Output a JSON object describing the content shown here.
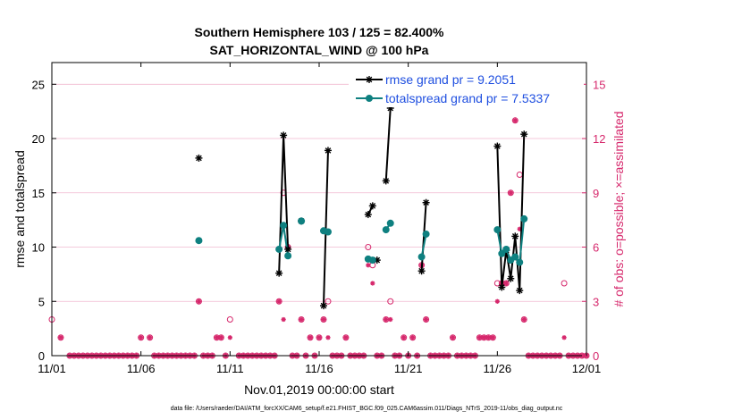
{
  "chart_data": {
    "type": "line",
    "title_line1": "Southern Hemisphere 103 / 125 = 82.400%",
    "title_line2": "SAT_HORIZONTAL_WIND @ 100 hPa",
    "ylabel": "rmse and totalspread",
    "y2label": "# of obs: o=possible; ×=assimilated",
    "xlabel": "Nov.01,2019 00:00:00 start",
    "footnote": "data file: /Users/raeder/DAI/ATM_forcXX/CAM6_setup/f.e21.FHIST_BGC.f09_025.CAM6assim.011/Diags_NTrS_2019-11/obs_diag_output.nc",
    "xlim": [
      0,
      30
    ],
    "ylim": [
      0,
      27
    ],
    "y2lim": [
      0,
      16.2
    ],
    "xticks": [
      0,
      5,
      10,
      15,
      20,
      25,
      30
    ],
    "xticklabels": [
      "11/01",
      "11/06",
      "11/11",
      "11/16",
      "11/21",
      "11/26",
      "12/01"
    ],
    "yticks": [
      0,
      5,
      10,
      15,
      20,
      25
    ],
    "y2ticks": [
      0,
      3,
      6,
      9,
      12,
      15
    ],
    "grid": true,
    "legend_position": "top-right",
    "colors": {
      "rmse": "#000000",
      "spread": "#0f8080",
      "obs": "#d6286c",
      "legend_text": "#1f4fe0",
      "grid": "#f0b8cf"
    },
    "series": [
      {
        "name": "rmse grand pr = 9.2051",
        "segments": [
          [
            [
              8.25,
              18.2
            ]
          ],
          [
            [
              12.75,
              7.6
            ],
            [
              13.0,
              20.3
            ],
            [
              13.25,
              9.8
            ]
          ],
          [
            [
              14.0,
              12.4
            ]
          ],
          [
            [
              15.25,
              4.6
            ],
            [
              15.5,
              18.9
            ]
          ],
          [
            [
              17.75,
              13.0
            ],
            [
              18.0,
              13.8
            ]
          ],
          [
            [
              18.25,
              8.8
            ]
          ],
          [
            [
              18.75,
              16.1
            ],
            [
              19.0,
              22.8
            ]
          ],
          [
            [
              20.75,
              7.8
            ],
            [
              21.0,
              14.1
            ]
          ],
          [
            [
              25.0,
              19.3
            ],
            [
              25.25,
              6.3
            ],
            [
              25.5,
              9.7
            ],
            [
              25.75,
              7.1
            ],
            [
              26.0,
              11.0
            ],
            [
              26.25,
              6.0
            ],
            [
              26.5,
              20.4
            ]
          ]
        ]
      },
      {
        "name": "totalspread grand pr = 7.5337",
        "segments": [
          [
            [
              8.25,
              10.6
            ]
          ],
          [
            [
              12.75,
              9.8
            ],
            [
              13.0,
              12.0
            ],
            [
              13.25,
              9.2
            ]
          ],
          [
            [
              14.0,
              12.4
            ]
          ],
          [
            [
              15.25,
              11.5
            ],
            [
              15.5,
              11.4
            ]
          ],
          [
            [
              17.75,
              8.9
            ],
            [
              18.0,
              8.8
            ]
          ],
          [
            [
              18.75,
              11.6
            ],
            [
              19.0,
              12.2
            ]
          ],
          [
            [
              20.75,
              9.1
            ],
            [
              21.0,
              11.2
            ]
          ],
          [
            [
              25.0,
              11.6
            ],
            [
              25.25,
              9.4
            ],
            [
              25.5,
              9.8
            ],
            [
              25.75,
              8.8
            ],
            [
              26.0,
              9.1
            ],
            [
              26.25,
              8.6
            ],
            [
              26.5,
              12.6
            ]
          ]
        ]
      }
    ],
    "obs_possible": [
      [
        0,
        2
      ],
      [
        0.5,
        1
      ],
      [
        1,
        0
      ],
      [
        1.25,
        0
      ],
      [
        1.5,
        0
      ],
      [
        1.75,
        0
      ],
      [
        2,
        0
      ],
      [
        2.25,
        0
      ],
      [
        2.5,
        0
      ],
      [
        2.75,
        0
      ],
      [
        3,
        0
      ],
      [
        3.25,
        0
      ],
      [
        3.5,
        0
      ],
      [
        3.75,
        0
      ],
      [
        4,
        0
      ],
      [
        4.25,
        0
      ],
      [
        4.5,
        0
      ],
      [
        4.75,
        0
      ],
      [
        5,
        1
      ],
      [
        5.5,
        1
      ],
      [
        5.75,
        0
      ],
      [
        6,
        0
      ],
      [
        6.25,
        0
      ],
      [
        6.5,
        0
      ],
      [
        6.75,
        0
      ],
      [
        7,
        0
      ],
      [
        7.25,
        0
      ],
      [
        7.5,
        0
      ],
      [
        7.75,
        0
      ],
      [
        8,
        0
      ],
      [
        8.25,
        3
      ],
      [
        8.5,
        0
      ],
      [
        8.75,
        0
      ],
      [
        9,
        0
      ],
      [
        9.25,
        1
      ],
      [
        9.5,
        1
      ],
      [
        9.75,
        0
      ],
      [
        10,
        2
      ],
      [
        10.5,
        0
      ],
      [
        10.75,
        0
      ],
      [
        11,
        0
      ],
      [
        11.25,
        0
      ],
      [
        11.5,
        0
      ],
      [
        11.75,
        0
      ],
      [
        12,
        0
      ],
      [
        12.25,
        0
      ],
      [
        12.5,
        0
      ],
      [
        12.75,
        3
      ],
      [
        13,
        9
      ],
      [
        13.25,
        6
      ],
      [
        13.5,
        0
      ],
      [
        13.75,
        0
      ],
      [
        14,
        2
      ],
      [
        14.25,
        0
      ],
      [
        14.5,
        1
      ],
      [
        14.75,
        0
      ],
      [
        15,
        1
      ],
      [
        15.25,
        2
      ],
      [
        15.5,
        3
      ],
      [
        15.75,
        0
      ],
      [
        16,
        0
      ],
      [
        16.25,
        0
      ],
      [
        16.5,
        1
      ],
      [
        16.75,
        0
      ],
      [
        17,
        0
      ],
      [
        17.25,
        0
      ],
      [
        17.5,
        0
      ],
      [
        17.75,
        6
      ],
      [
        18,
        5
      ],
      [
        18.25,
        0
      ],
      [
        18.5,
        0
      ],
      [
        18.75,
        2
      ],
      [
        19,
        3
      ],
      [
        19.25,
        0
      ],
      [
        19.5,
        0
      ],
      [
        19.75,
        1
      ],
      [
        20,
        0
      ],
      [
        20.25,
        1
      ],
      [
        20.5,
        0
      ],
      [
        20.75,
        5
      ],
      [
        21,
        2
      ],
      [
        21.25,
        0
      ],
      [
        21.5,
        0
      ],
      [
        21.75,
        0
      ],
      [
        22,
        0
      ],
      [
        22.25,
        0
      ],
      [
        22.5,
        1
      ],
      [
        22.75,
        0
      ],
      [
        23,
        0
      ],
      [
        23.25,
        0
      ],
      [
        23.5,
        0
      ],
      [
        23.75,
        0
      ],
      [
        24,
        1
      ],
      [
        24.25,
        1
      ],
      [
        24.5,
        1
      ],
      [
        24.75,
        1
      ],
      [
        25,
        4
      ],
      [
        25.25,
        4
      ],
      [
        25.5,
        4
      ],
      [
        25.75,
        9
      ],
      [
        26,
        13
      ],
      [
        26.25,
        10
      ],
      [
        26.5,
        2
      ],
      [
        26.75,
        0
      ],
      [
        27,
        0
      ],
      [
        27.25,
        0
      ],
      [
        27.5,
        0
      ],
      [
        27.75,
        0
      ],
      [
        28,
        0
      ],
      [
        28.25,
        0
      ],
      [
        28.5,
        0
      ],
      [
        28.75,
        4
      ],
      [
        29,
        0
      ],
      [
        29.25,
        0
      ],
      [
        29.5,
        0
      ],
      [
        29.75,
        0
      ],
      [
        30,
        0
      ]
    ],
    "obs_assimilated": [
      [
        0.5,
        1
      ],
      [
        1,
        0
      ],
      [
        1.25,
        0
      ],
      [
        1.5,
        0
      ],
      [
        1.75,
        0
      ],
      [
        2,
        0
      ],
      [
        2.25,
        0
      ],
      [
        2.5,
        0
      ],
      [
        2.75,
        0
      ],
      [
        3,
        0
      ],
      [
        3.25,
        0
      ],
      [
        3.5,
        0
      ],
      [
        3.75,
        0
      ],
      [
        4,
        0
      ],
      [
        4.25,
        0
      ],
      [
        4.5,
        0
      ],
      [
        4.75,
        0
      ],
      [
        5,
        1
      ],
      [
        5.5,
        1
      ],
      [
        5.75,
        0
      ],
      [
        6,
        0
      ],
      [
        6.25,
        0
      ],
      [
        6.5,
        0
      ],
      [
        6.75,
        0
      ],
      [
        7,
        0
      ],
      [
        7.25,
        0
      ],
      [
        7.5,
        0
      ],
      [
        7.75,
        0
      ],
      [
        8,
        0
      ],
      [
        8.25,
        3
      ],
      [
        8.5,
        0
      ],
      [
        8.75,
        0
      ],
      [
        9,
        0
      ],
      [
        9.25,
        1
      ],
      [
        9.5,
        1
      ],
      [
        9.75,
        0
      ],
      [
        10,
        1
      ],
      [
        10.5,
        0
      ],
      [
        10.75,
        0
      ],
      [
        11,
        0
      ],
      [
        11.25,
        0
      ],
      [
        11.5,
        0
      ],
      [
        11.75,
        0
      ],
      [
        12,
        0
      ],
      [
        12.25,
        0
      ],
      [
        12.5,
        0
      ],
      [
        12.75,
        3
      ],
      [
        13,
        2
      ],
      [
        13.25,
        6
      ],
      [
        13.5,
        0
      ],
      [
        13.75,
        0
      ],
      [
        14,
        2
      ],
      [
        14.25,
        0
      ],
      [
        14.5,
        1
      ],
      [
        14.75,
        0
      ],
      [
        15,
        1
      ],
      [
        15.25,
        2
      ],
      [
        15.5,
        1
      ],
      [
        15.75,
        0
      ],
      [
        16,
        0
      ],
      [
        16.25,
        0
      ],
      [
        16.5,
        1
      ],
      [
        16.75,
        0
      ],
      [
        17,
        0
      ],
      [
        17.25,
        0
      ],
      [
        17.5,
        0
      ],
      [
        17.75,
        5
      ],
      [
        18,
        4
      ],
      [
        18.25,
        0
      ],
      [
        18.5,
        0
      ],
      [
        18.75,
        2
      ],
      [
        19,
        2
      ],
      [
        19.25,
        0
      ],
      [
        19.5,
        0
      ],
      [
        19.75,
        1
      ],
      [
        20,
        0
      ],
      [
        20.25,
        1
      ],
      [
        20.5,
        0
      ],
      [
        20.75,
        5
      ],
      [
        21,
        2
      ],
      [
        21.25,
        0
      ],
      [
        21.5,
        0
      ],
      [
        21.75,
        0
      ],
      [
        22,
        0
      ],
      [
        22.25,
        0
      ],
      [
        22.5,
        1
      ],
      [
        22.75,
        0
      ],
      [
        23,
        0
      ],
      [
        23.25,
        0
      ],
      [
        23.5,
        0
      ],
      [
        23.75,
        0
      ],
      [
        24,
        1
      ],
      [
        24.25,
        1
      ],
      [
        24.5,
        1
      ],
      [
        24.75,
        1
      ],
      [
        25,
        3
      ],
      [
        25.25,
        4
      ],
      [
        25.5,
        4
      ],
      [
        25.75,
        9
      ],
      [
        26,
        13
      ],
      [
        26.25,
        7
      ],
      [
        26.5,
        2
      ],
      [
        26.75,
        0
      ],
      [
        27,
        0
      ],
      [
        27.25,
        0
      ],
      [
        27.5,
        0
      ],
      [
        27.75,
        0
      ],
      [
        28,
        0
      ],
      [
        28.25,
        0
      ],
      [
        28.5,
        0
      ],
      [
        28.75,
        1
      ],
      [
        29,
        0
      ],
      [
        29.25,
        0
      ],
      [
        29.5,
        0
      ],
      [
        29.75,
        0
      ],
      [
        30,
        0
      ]
    ]
  }
}
